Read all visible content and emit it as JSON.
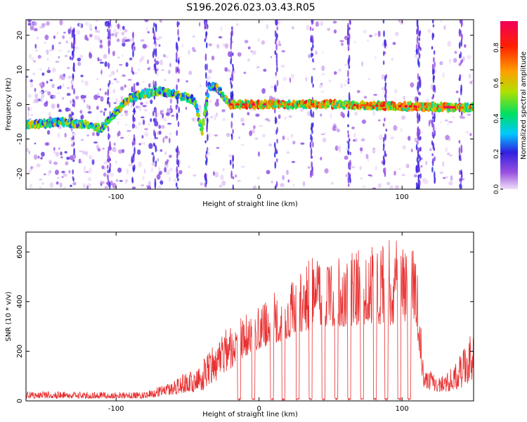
{
  "title": "S196.2026.023.03.43.R05",
  "colors": {
    "snr_line": "#e83030",
    "frame": "#000000",
    "background": "#ffffff"
  },
  "chart_data": [
    {
      "type": "heatmap",
      "xlabel": "Height of straight line (km)",
      "ylabel": "Frequency (Hz)",
      "xlim": [
        -163,
        150
      ],
      "ylim": [
        -24.5,
        24.5
      ],
      "xticks": [
        -100,
        0,
        100
      ],
      "yticks": [
        -20,
        -10,
        0,
        10,
        20
      ],
      "ridge": [
        {
          "x": -163,
          "f": -6
        },
        {
          "x": -140,
          "f": -5
        },
        {
          "x": -120,
          "f": -6
        },
        {
          "x": -110,
          "f": -7
        },
        {
          "x": -100,
          "f": -2
        },
        {
          "x": -90,
          "f": 2
        },
        {
          "x": -80,
          "f": 3
        },
        {
          "x": -70,
          "f": 4
        },
        {
          "x": -60,
          "f": 3
        },
        {
          "x": -50,
          "f": 2
        },
        {
          "x": -45,
          "f": 1
        },
        {
          "x": -40,
          "f": -8
        },
        {
          "x": -35,
          "f": 5
        },
        {
          "x": -30,
          "f": 5
        },
        {
          "x": -20,
          "f": 0
        },
        {
          "x": 0,
          "f": 0
        },
        {
          "x": 50,
          "f": 0
        },
        {
          "x": 100,
          "f": -0.5
        },
        {
          "x": 150,
          "f": -1
        }
      ],
      "colorbar": {
        "label": "Normalized spectral amplitude",
        "range": [
          0,
          0.95
        ],
        "ticks": [
          0,
          0.2,
          0.4,
          0.6,
          0.8
        ],
        "tick_labels": [
          "0.0",
          "0.2",
          "0.4",
          "0.6",
          "0.8"
        ],
        "colormap": [
          "#f0e0f8",
          "#9a50e0",
          "#3020e0",
          "#00c8ff",
          "#00e060",
          "#b0e000",
          "#ffa000",
          "#ff2000",
          "#f0005a"
        ]
      }
    },
    {
      "type": "line",
      "xlabel": "Height of straight line (km)",
      "ylabel": "SNR (10 * v/v)",
      "xlim": [
        -163,
        150
      ],
      "ylim": [
        0,
        680
      ],
      "xticks": [
        -100,
        0,
        100
      ],
      "yticks": [
        0,
        200,
        400,
        600
      ],
      "envelope": [
        {
          "x": -163,
          "base": 10,
          "peak": 40
        },
        {
          "x": -80,
          "base": 10,
          "peak": 35
        },
        {
          "x": -60,
          "base": 25,
          "peak": 80
        },
        {
          "x": -40,
          "base": 40,
          "peak": 160
        },
        {
          "x": -25,
          "base": 100,
          "peak": 280
        },
        {
          "x": -10,
          "base": 180,
          "peak": 350
        },
        {
          "x": 5,
          "base": 220,
          "peak": 420
        },
        {
          "x": 20,
          "base": 250,
          "peak": 480
        },
        {
          "x": 40,
          "base": 300,
          "peak": 600
        },
        {
          "x": 60,
          "base": 300,
          "peak": 590
        },
        {
          "x": 80,
          "base": 310,
          "peak": 630
        },
        {
          "x": 100,
          "base": 300,
          "peak": 670
        },
        {
          "x": 110,
          "base": 290,
          "peak": 600
        },
        {
          "x": 115,
          "base": 50,
          "peak": 130
        },
        {
          "x": 130,
          "base": 30,
          "peak": 100
        },
        {
          "x": 145,
          "base": 60,
          "peak": 250
        },
        {
          "x": 150,
          "base": 80,
          "peak": 280
        }
      ],
      "dropouts_x": [
        -14,
        -4,
        9,
        17,
        27,
        36,
        45,
        54,
        63,
        72,
        81,
        89,
        98,
        105
      ]
    }
  ]
}
